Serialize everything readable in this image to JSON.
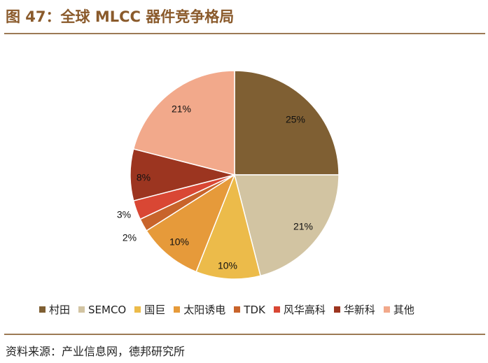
{
  "figure": {
    "title": "图 47：全球 MLCC 器件竞争格局",
    "source": "资料来源：产业信息网，德邦研究所"
  },
  "chart_data": {
    "type": "pie",
    "title": "全球 MLCC 器件竞争格局",
    "unit": "%",
    "legend_position": "bottom",
    "slices": [
      {
        "name": "村田",
        "value": 25,
        "label": "25%",
        "color": "#7f5f33"
      },
      {
        "name": "SEMCO",
        "value": 21,
        "label": "21%",
        "color": "#d2c4a2"
      },
      {
        "name": "国巨",
        "value": 10,
        "label": "10%",
        "color": "#ecbb4a"
      },
      {
        "name": "太阳诱电",
        "value": 10,
        "label": "10%",
        "color": "#e69a3a"
      },
      {
        "name": "TDK",
        "value": 2,
        "label": "2%",
        "color": "#c8642b"
      },
      {
        "name": "风华高科",
        "value": 3,
        "label": "3%",
        "color": "#d94734"
      },
      {
        "name": "华新科",
        "value": 8,
        "label": "8%",
        "color": "#9c3520"
      },
      {
        "name": "其他",
        "value": 21,
        "label": "21%",
        "color": "#f2a98b"
      }
    ]
  }
}
